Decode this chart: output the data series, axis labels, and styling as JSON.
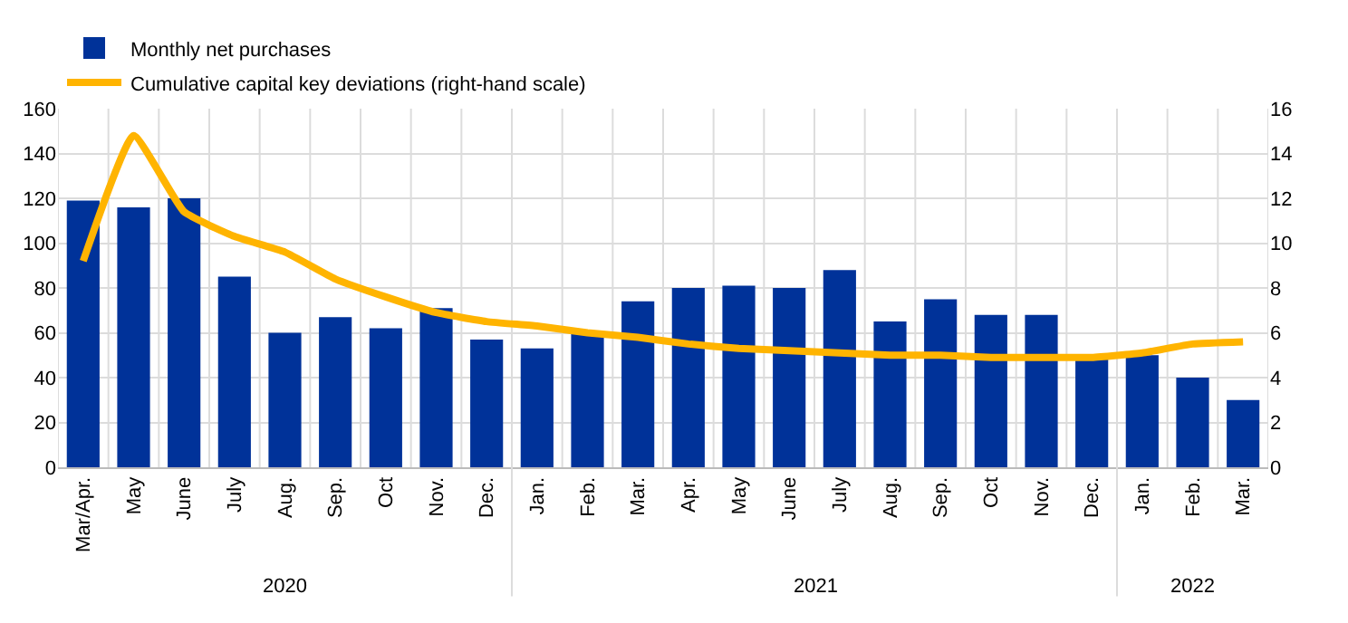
{
  "chart_data": {
    "type": "bar",
    "categories": [
      "Mar/Apr.",
      "May",
      "June",
      "July",
      "Aug.",
      "Sep.",
      "Oct",
      "Nov.",
      "Dec.",
      "Jan.",
      "Feb.",
      "Mar.",
      "Apr.",
      "May",
      "June",
      "July",
      "Aug.",
      "Sep.",
      "Oct",
      "Nov.",
      "Dec.",
      "Jan.",
      "Feb.",
      "Mar."
    ],
    "series": [
      {
        "name": "Monthly net purchases",
        "color": "#003299",
        "values": [
          119,
          116,
          120,
          85,
          60,
          67,
          62,
          71,
          57,
          53,
          60,
          74,
          80,
          81,
          80,
          88,
          65,
          75,
          68,
          68,
          50,
          50,
          40,
          30
        ]
      },
      {
        "name": "Cumulative capital key deviations (right-hand scale)",
        "type": "line",
        "axis": "y2",
        "color": "#ffb400",
        "values": [
          9.2,
          14.8,
          11.4,
          10.3,
          9.6,
          8.4,
          7.6,
          6.9,
          6.5,
          6.3,
          6.0,
          5.8,
          5.5,
          5.3,
          5.2,
          5.1,
          5.0,
          5.0,
          4.9,
          4.9,
          4.9,
          5.1,
          5.5,
          5.6
        ]
      }
    ],
    "ylim": [
      0,
      160
    ],
    "yticks": [
      0,
      20,
      40,
      60,
      80,
      100,
      120,
      140,
      160
    ],
    "y2lim": [
      0,
      16
    ],
    "y2ticks": [
      0,
      2,
      4,
      6,
      8,
      10,
      12,
      14,
      16
    ],
    "annotations": [
      "2020",
      "2021",
      "2022"
    ],
    "grid": true,
    "legend": "top left",
    "marker": "none",
    "line_style": "solid"
  }
}
